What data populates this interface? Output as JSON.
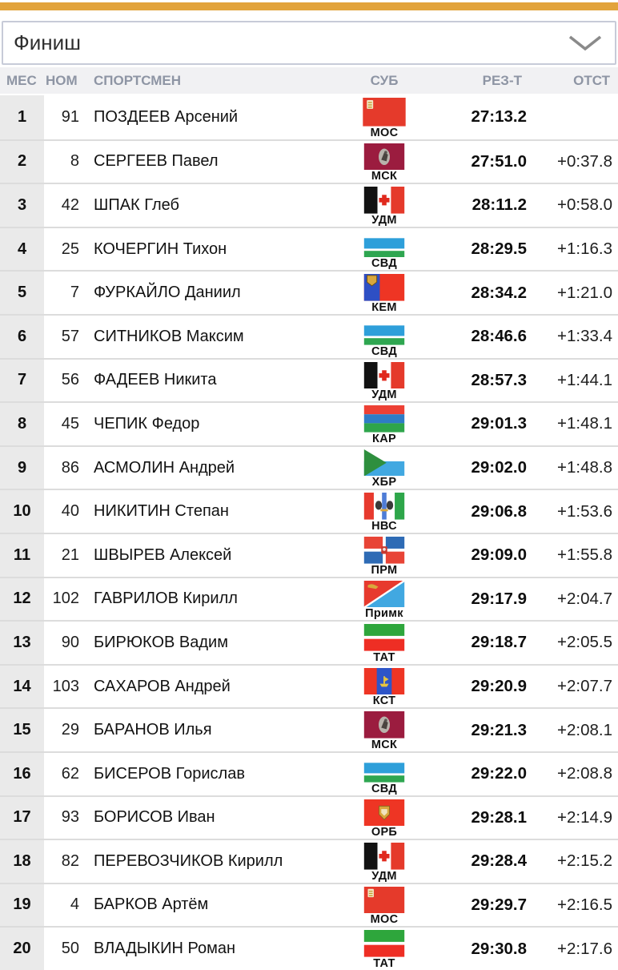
{
  "accent_color": "#E2A33B",
  "filter": {
    "value": "Финиш"
  },
  "table": {
    "headers": {
      "place": "МЕС",
      "bib": "НОМ",
      "athlete": "СПОРТСМЕН",
      "region": "СУБ",
      "result": "РЕЗ-Т",
      "gap": "ОТСТ"
    },
    "rows": [
      {
        "place": "1",
        "bib": "91",
        "name": "ПОЗДЕЕВ Арсений",
        "region_code": "МОС",
        "region_key": "MOS",
        "result": "27:13.2",
        "gap": ""
      },
      {
        "place": "2",
        "bib": "8",
        "name": "СЕРГЕЕВ Павел",
        "region_code": "МСК",
        "region_key": "MSK",
        "result": "27:51.0",
        "gap": "+0:37.8"
      },
      {
        "place": "3",
        "bib": "42",
        "name": "ШПАК Глеб",
        "region_code": "УДМ",
        "region_key": "UDM",
        "result": "28:11.2",
        "gap": "+0:58.0"
      },
      {
        "place": "4",
        "bib": "25",
        "name": "КОЧЕРГИН Тихон",
        "region_code": "СВД",
        "region_key": "SVD",
        "result": "28:29.5",
        "gap": "+1:16.3"
      },
      {
        "place": "5",
        "bib": "7",
        "name": "ФУРКАЙЛО Даниил",
        "region_code": "КЕМ",
        "region_key": "KEM",
        "result": "28:34.2",
        "gap": "+1:21.0"
      },
      {
        "place": "6",
        "bib": "57",
        "name": "СИТНИКОВ Максим",
        "region_code": "СВД",
        "region_key": "SVD",
        "result": "28:46.6",
        "gap": "+1:33.4"
      },
      {
        "place": "7",
        "bib": "56",
        "name": "ФАДЕЕВ Никита",
        "region_code": "УДМ",
        "region_key": "UDM",
        "result": "28:57.3",
        "gap": "+1:44.1"
      },
      {
        "place": "8",
        "bib": "45",
        "name": "ЧЕПИК Федор",
        "region_code": "КАР",
        "region_key": "KAR",
        "result": "29:01.3",
        "gap": "+1:48.1"
      },
      {
        "place": "9",
        "bib": "86",
        "name": "АСМОЛИН Андрей",
        "region_code": "ХБР",
        "region_key": "KHB",
        "result": "29:02.0",
        "gap": "+1:48.8"
      },
      {
        "place": "10",
        "bib": "40",
        "name": "НИКИТИН Степан",
        "region_code": "НВС",
        "region_key": "NVS",
        "result": "29:06.8",
        "gap": "+1:53.6"
      },
      {
        "place": "11",
        "bib": "21",
        "name": "ШВЫРЕВ Алексей",
        "region_code": "ПРМ",
        "region_key": "PRM",
        "result": "29:09.0",
        "gap": "+1:55.8"
      },
      {
        "place": "12",
        "bib": "102",
        "name": "ГАВРИЛОВ Кирилл",
        "region_code": "Примк",
        "region_key": "PRIMK",
        "result": "29:17.9",
        "gap": "+2:04.7"
      },
      {
        "place": "13",
        "bib": "90",
        "name": "БИРЮКОВ Вадим",
        "region_code": "ТАТ",
        "region_key": "TAT",
        "result": "29:18.7",
        "gap": "+2:05.5"
      },
      {
        "place": "14",
        "bib": "103",
        "name": "САХАРОВ Андрей",
        "region_code": "КСТ",
        "region_key": "KST",
        "result": "29:20.9",
        "gap": "+2:07.7"
      },
      {
        "place": "15",
        "bib": "29",
        "name": "БАРАНОВ Илья",
        "region_code": "МСК",
        "region_key": "MSK",
        "result": "29:21.3",
        "gap": "+2:08.1"
      },
      {
        "place": "16",
        "bib": "62",
        "name": "БИСЕРОВ Горислав",
        "region_code": "СВД",
        "region_key": "SVD",
        "result": "29:22.0",
        "gap": "+2:08.8"
      },
      {
        "place": "17",
        "bib": "93",
        "name": "БОРИСОВ Иван",
        "region_code": "ОРБ",
        "region_key": "ORB",
        "result": "29:28.1",
        "gap": "+2:14.9"
      },
      {
        "place": "18",
        "bib": "82",
        "name": "ПЕРЕВОЗЧИКОВ Кирилл",
        "region_code": "УДМ",
        "region_key": "UDM",
        "result": "29:28.4",
        "gap": "+2:15.2"
      },
      {
        "place": "19",
        "bib": "4",
        "name": "БАРКОВ Артём",
        "region_code": "МОС",
        "region_key": "MOS",
        "result": "29:29.7",
        "gap": "+2:16.5"
      },
      {
        "place": "20",
        "bib": "50",
        "name": "ВЛАДЫКИН Роман",
        "region_code": "ТАТ",
        "region_key": "TAT",
        "result": "29:30.8",
        "gap": "+2:17.6"
      }
    ]
  }
}
